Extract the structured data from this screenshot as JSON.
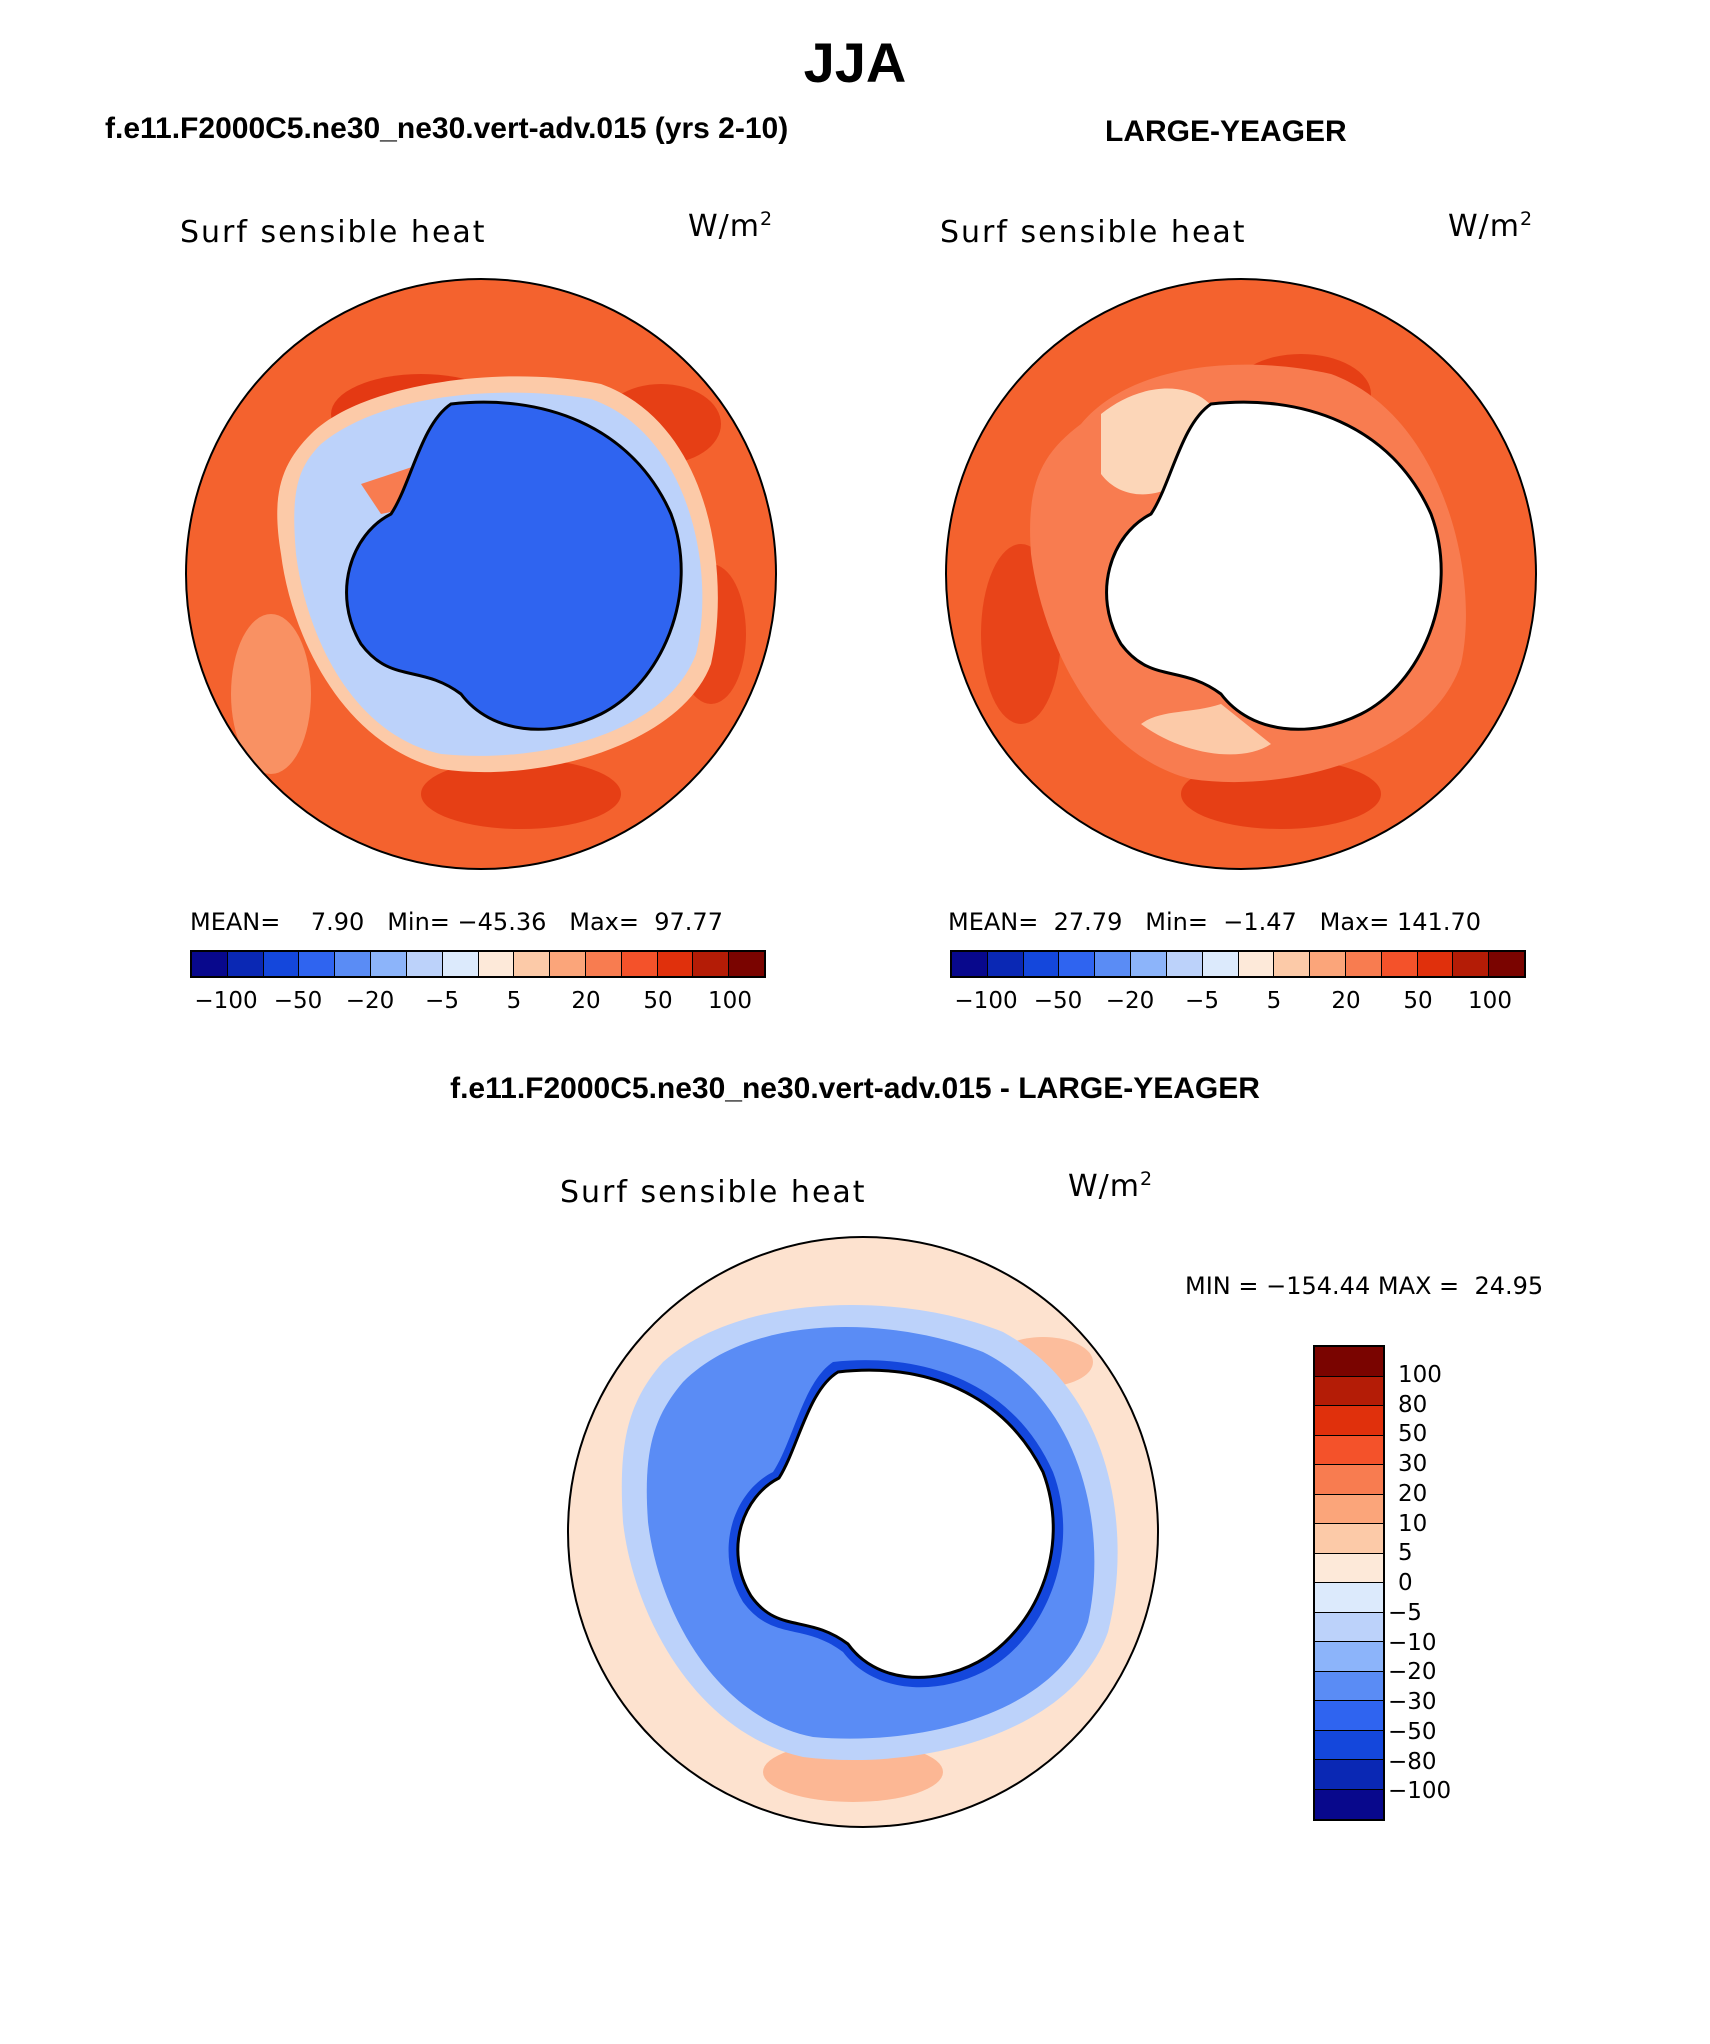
{
  "season": "JJA",
  "panels": {
    "left": {
      "case_title": "f.e11.F2000C5.ne30_ne30.vert-adv.015 (yrs 2-10)",
      "variable": "Surf sensible heat",
      "units_base": "W/m",
      "units_exp": "2",
      "mean_label": "MEAN=",
      "mean": "7.90",
      "min_label": "Min=",
      "min": "−45.36",
      "max_label": "Max=",
      "max": "97.77"
    },
    "right": {
      "case_title": "LARGE-YEAGER",
      "variable": "Surf sensible heat",
      "units_base": "W/m",
      "units_exp": "2",
      "mean_label": "MEAN=",
      "mean": "27.79",
      "min_label": "Min=",
      "min": "−1.47",
      "max_label": "Max=",
      "max": "141.70"
    },
    "diff": {
      "case_title": "f.e11.F2000C5.ne30_ne30.vert-adv.015 - LARGE-YEAGER",
      "variable": "Surf sensible heat",
      "units_base": "W/m",
      "units_exp": "2",
      "min_label": "MIN =",
      "min": "−154.44",
      "max_label": "MAX =",
      "max": "24.95"
    }
  },
  "horizontal_colorbar": {
    "colors": [
      "#08088c",
      "#0a28b4",
      "#1447dc",
      "#2f64f0",
      "#5a8cf5",
      "#8cb4fa",
      "#bcd2fa",
      "#dceafc",
      "#fde9d9",
      "#fccaa8",
      "#fba57a",
      "#f87c50",
      "#f4522a",
      "#e0300c",
      "#b41c06",
      "#7a0400"
    ],
    "tick_labels": [
      "−100",
      "−50",
      "−20",
      "−5",
      "5",
      "20",
      "50",
      "100"
    ]
  },
  "diff_colorbar": {
    "colors_top_to_bottom": [
      "#7a0400",
      "#b41c06",
      "#e0300c",
      "#f4522a",
      "#f87c50",
      "#fba57a",
      "#fccaa8",
      "#fde9d9",
      "#dceafc",
      "#bcd2fa",
      "#8cb4fa",
      "#5a8cf5",
      "#2f64f0",
      "#1447dc",
      "#0a28b4",
      "#08088c"
    ],
    "tick_labels": [
      "100",
      "80",
      "50",
      "30",
      "20",
      "10",
      "5",
      "0",
      "−5",
      "−10",
      "−20",
      "−30",
      "−50",
      "−80",
      "−100"
    ]
  },
  "fields": {
    "ocean_left": "#f4622e",
    "ocean_right": "#f4622e",
    "ocean_diff": "#fde2cf",
    "ice_left": "#bcd2fa",
    "ice_right": "#fcd6b8",
    "ice_diff": "#5a8cf5",
    "land_left": "#2f64f0",
    "land_diff": "#ffffff",
    "coast": "#000000"
  }
}
